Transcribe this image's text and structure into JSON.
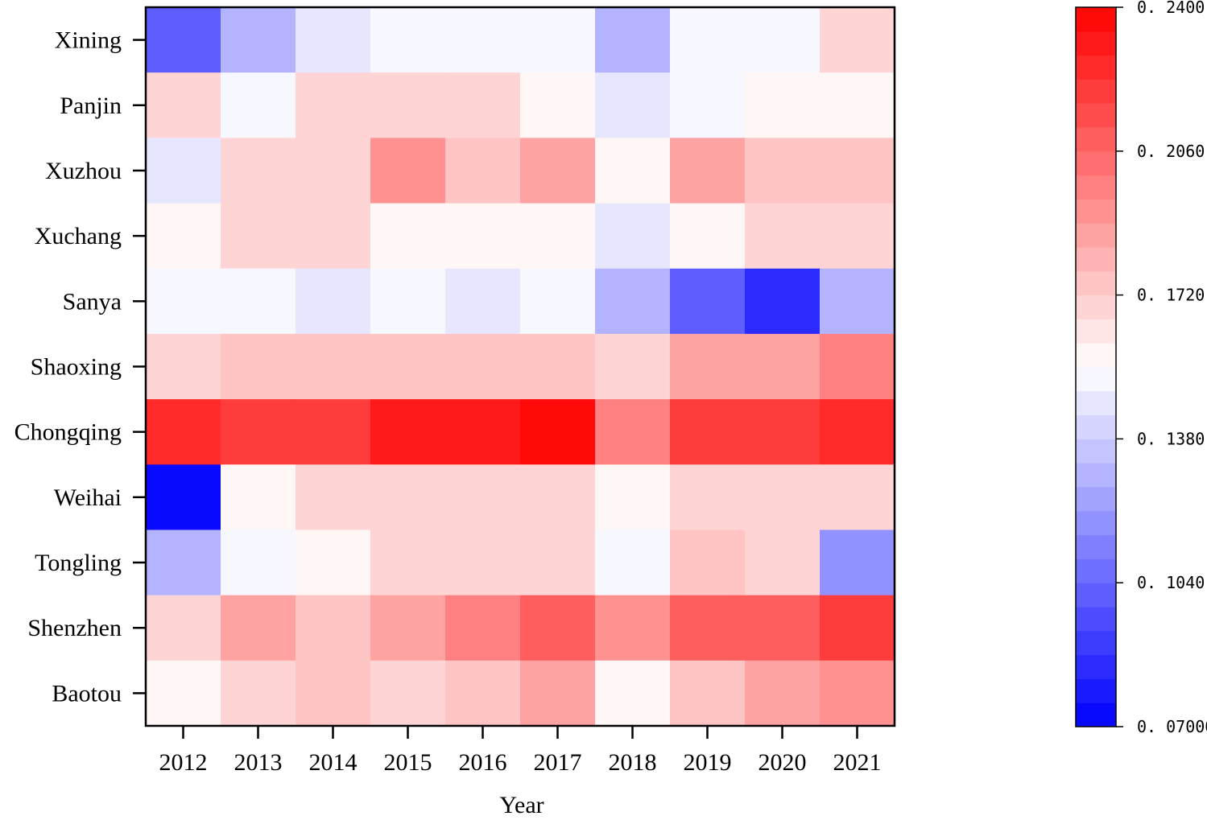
{
  "chart_data": {
    "type": "heatmap",
    "xlabel": "Year",
    "ylabel": "",
    "x": [
      "2012",
      "2013",
      "2014",
      "2015",
      "2016",
      "2017",
      "2018",
      "2019",
      "2020",
      "2021"
    ],
    "y": [
      "Xining",
      "Panjin",
      "Xuzhou",
      "Xuchang",
      "Sanya",
      "Shaoxing",
      "Chongqing",
      "Weihai",
      "Tongling",
      "Shenzhen",
      "Baotou"
    ],
    "values": [
      [
        0.102,
        0.132,
        0.144,
        0.152,
        0.152,
        0.152,
        0.132,
        0.152,
        0.152,
        0.168
      ],
      [
        0.168,
        0.152,
        0.168,
        0.168,
        0.168,
        0.16,
        0.144,
        0.152,
        0.16,
        0.16
      ],
      [
        0.144,
        0.168,
        0.168,
        0.192,
        0.176,
        0.188,
        0.16,
        0.188,
        0.176,
        0.176
      ],
      [
        0.16,
        0.168,
        0.168,
        0.16,
        0.16,
        0.16,
        0.144,
        0.16,
        0.168,
        0.168
      ],
      [
        0.152,
        0.152,
        0.144,
        0.152,
        0.144,
        0.152,
        0.132,
        0.104,
        0.086,
        0.132
      ],
      [
        0.168,
        0.176,
        0.176,
        0.176,
        0.176,
        0.176,
        0.168,
        0.188,
        0.188,
        0.196
      ],
      [
        0.228,
        0.22,
        0.22,
        0.232,
        0.232,
        0.24,
        0.196,
        0.22,
        0.22,
        0.228
      ],
      [
        0.07,
        0.16,
        0.168,
        0.168,
        0.168,
        0.168,
        0.16,
        0.168,
        0.168,
        0.168
      ],
      [
        0.132,
        0.152,
        0.16,
        0.168,
        0.168,
        0.168,
        0.152,
        0.176,
        0.168,
        0.116
      ],
      [
        0.168,
        0.188,
        0.176,
        0.188,
        0.196,
        0.208,
        0.192,
        0.208,
        0.208,
        0.22
      ],
      [
        0.16,
        0.168,
        0.176,
        0.168,
        0.176,
        0.188,
        0.16,
        0.176,
        0.188,
        0.192
      ]
    ],
    "colorbar": {
      "min": 0.07,
      "max": 0.24,
      "ticks": [
        0.07,
        0.104,
        0.138,
        0.172,
        0.206,
        0.24
      ],
      "tick_labels": [
        "0. 07000",
        "0. 1040",
        "0. 1380",
        "0. 1720",
        "0. 2060",
        "0. 2400"
      ],
      "steps": 30,
      "colormap": "bwr",
      "low_color": "#0000ff",
      "mid_color": "#ffffff",
      "high_color": "#ff0000"
    }
  }
}
